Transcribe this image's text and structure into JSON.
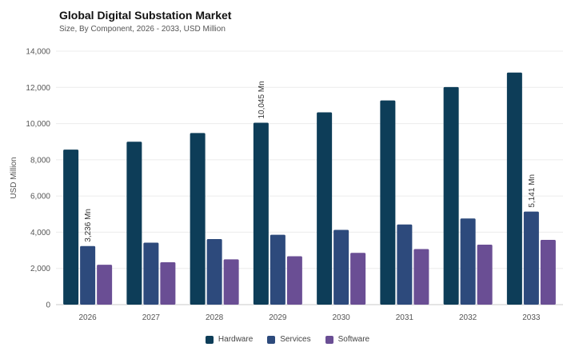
{
  "header": {
    "title": "Global Digital Substation Market",
    "subtitle": "Size, By Component, 2026 - 2033, USD Million"
  },
  "chart_data": {
    "type": "bar",
    "categories": [
      "2026",
      "2027",
      "2028",
      "2029",
      "2030",
      "2031",
      "2032",
      "2033"
    ],
    "series": [
      {
        "name": "Hardware",
        "color": "#0d3d58",
        "values": [
          8560,
          9000,
          9480,
          10045,
          10620,
          11280,
          12020,
          12820
        ]
      },
      {
        "name": "Services",
        "color": "#2d4a7c",
        "values": [
          3236,
          3420,
          3620,
          3860,
          4130,
          4430,
          4760,
          5141
        ]
      },
      {
        "name": "Software",
        "color": "#6a4e94",
        "values": [
          2200,
          2340,
          2500,
          2670,
          2860,
          3070,
          3310,
          3580
        ]
      }
    ],
    "ylabel": "USD Million",
    "xlabel": "",
    "ylim": [
      0,
      14000
    ],
    "yticks": [
      "0",
      "2,000",
      "4,000",
      "6,000",
      "8,000",
      "10,000",
      "12,000",
      "14,000"
    ],
    "annotations": [
      {
        "series": "Services",
        "category": "2026",
        "text": "3,236 Mn"
      },
      {
        "series": "Hardware",
        "category": "2029",
        "text": "10,045 Mn"
      },
      {
        "series": "Services",
        "category": "2033",
        "text": "5,141 Mn"
      }
    ],
    "grid": true,
    "legend_position": "bottom"
  }
}
